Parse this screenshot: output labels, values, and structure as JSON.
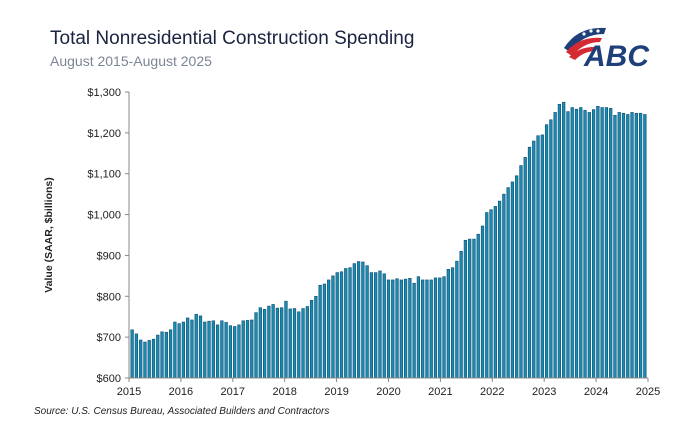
{
  "chart_data": {
    "type": "bar",
    "title": "Total Nonresidential Construction Spending",
    "subtitle": "August 2015-August 2025",
    "xlabel": "",
    "ylabel": "Value (SAAR, $billions)",
    "ylim": [
      600,
      1300
    ],
    "yticks": [
      600,
      700,
      800,
      900,
      1000,
      1100,
      1200,
      1300
    ],
    "ytick_labels": [
      "$600",
      "$700",
      "$800",
      "$900",
      "$1,000",
      "$1,100",
      "$1,200",
      "$1,300"
    ],
    "xtick_labels": [
      "2015",
      "2016",
      "2017",
      "2018",
      "2019",
      "2020",
      "2021",
      "2022",
      "2023",
      "2024",
      "2025"
    ],
    "x_start": "August 2015",
    "x_end": "August 2025",
    "grid": false,
    "legend": "none",
    "bar_color": "#1a8ab0",
    "bar_edge_color": "#0d4f73",
    "values": [
      718,
      708,
      693,
      688,
      692,
      695,
      705,
      713,
      712,
      718,
      737,
      733,
      737,
      747,
      742,
      756,
      752,
      737,
      739,
      740,
      730,
      740,
      736,
      728,
      726,
      730,
      740,
      741,
      742,
      760,
      772,
      768,
      776,
      780,
      771,
      772,
      788,
      769,
      770,
      762,
      770,
      775,
      790,
      800,
      827,
      830,
      840,
      850,
      858,
      860,
      868,
      870,
      880,
      885,
      884,
      875,
      858,
      858,
      862,
      855,
      840,
      840,
      843,
      840,
      842,
      844,
      832,
      848,
      840,
      840,
      840,
      845,
      845,
      848,
      866,
      870,
      886,
      910,
      937,
      940,
      940,
      952,
      972,
      1005,
      1012,
      1020,
      1033,
      1050,
      1066,
      1080,
      1095,
      1120,
      1140,
      1165,
      1180,
      1193,
      1195,
      1220,
      1232,
      1250,
      1270,
      1275,
      1252,
      1262,
      1258,
      1262,
      1255,
      1250,
      1257,
      1265,
      1262,
      1262,
      1260,
      1243,
      1250,
      1248,
      1245,
      1250,
      1248,
      1248,
      1245
    ]
  },
  "header": {
    "title": "Total Nonresidential Construction Spending",
    "subtitle": "August 2015-August 2025",
    "logo_text": "ABC"
  },
  "footer": {
    "source": "Source:  U.S. Census Bureau, Associated Builders and Contractors"
  }
}
